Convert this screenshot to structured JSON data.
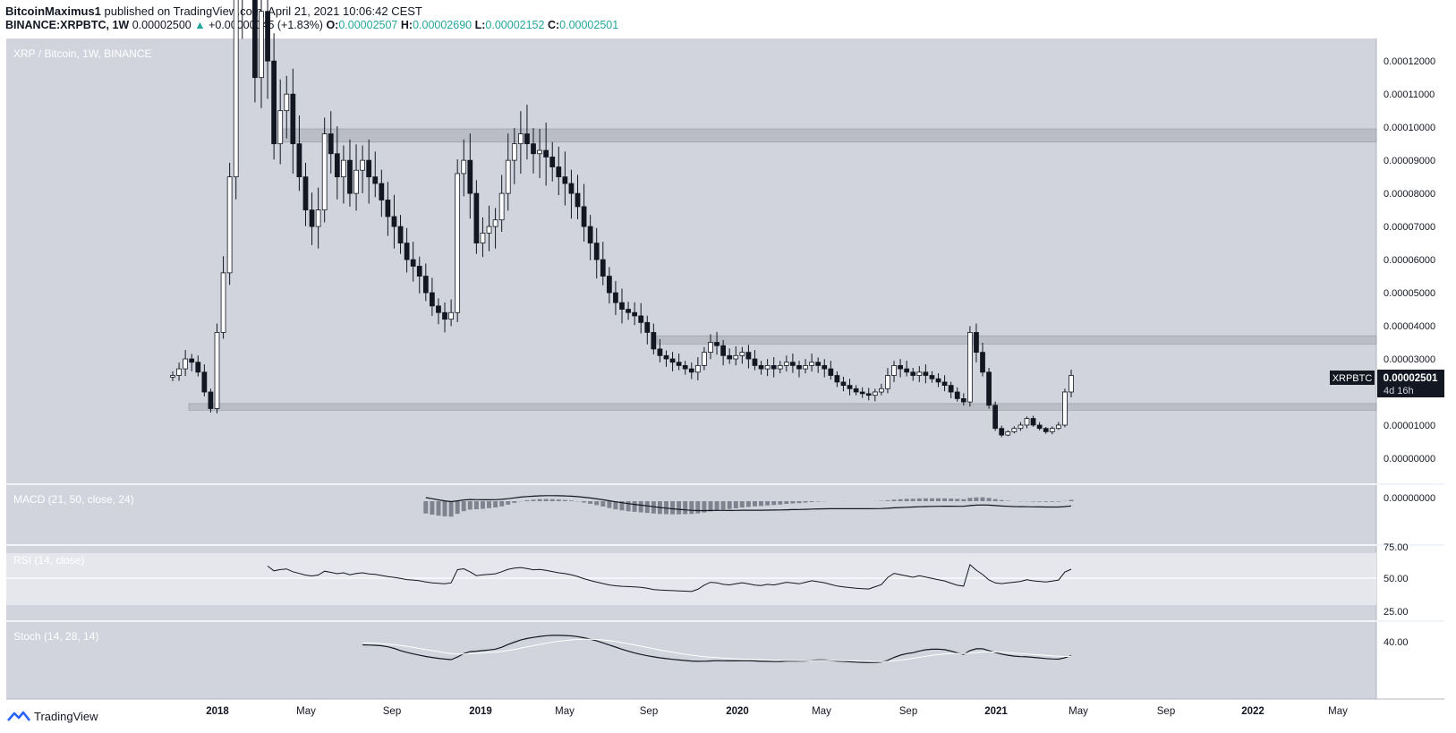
{
  "header": {
    "author": "BitcoinMaximus1",
    "published_text": "published on TradingView.com, April 21, 2021 10:06:42 CEST",
    "symbol": "BINANCE:XRPBTC, 1W",
    "last": "0.00002500",
    "change": "+0.00000045 (+1.83%)",
    "o_label": "O:",
    "o": "0.00002507",
    "h_label": "H:",
    "h": "0.00002690",
    "l_label": "L:",
    "l": "0.00002152",
    "c_label": "C:",
    "c": "0.00002501"
  },
  "footer": {
    "brand": "TradingView"
  },
  "colors": {
    "panel_bg": "#d1d4dc",
    "accent": "#26a69a",
    "zone_fill": "#b2b5be",
    "candle": "#131722"
  },
  "chart_data": {
    "type": "candlestick",
    "title": "XRP / Bitcoin, 1W, BINANCE",
    "currency_label": "BTC",
    "last_price_tag": {
      "symbol": "XRPBTC",
      "price": "0.00002501",
      "countdown": "4d 16h"
    },
    "x_ticks": [
      "2018",
      "May",
      "Sep",
      "2019",
      "May",
      "Sep",
      "2020",
      "May",
      "Sep",
      "2021",
      "May",
      "Sep",
      "2022",
      "May"
    ],
    "y_ticks": [
      "0.00000000",
      "0.00001000",
      "0.00002000",
      "0.00003000",
      "0.00004000",
      "0.00005000",
      "0.00006000",
      "0.00007000",
      "0.00008000",
      "0.00009000",
      "0.00010000",
      "0.00011000",
      "0.00012000"
    ],
    "ylim": [
      -6.5e-06,
      0.000126
    ],
    "horizontal_zones": [
      {
        "from": 9.55e-05,
        "to": 9.95e-05,
        "start": "2018-04"
      },
      {
        "from": 3.45e-05,
        "to": 3.7e-05,
        "start": "2018-09"
      },
      {
        "from": 1.45e-05,
        "to": 1.65e-05,
        "start": "2017-10"
      }
    ],
    "close_series_1e-8": [
      2500,
      2700,
      3000,
      2900,
      2600,
      2000,
      1500,
      3800,
      5600,
      8500,
      14000,
      16500,
      15500,
      11500,
      13500,
      12000,
      9500,
      10500,
      11000,
      9500,
      8500,
      7500,
      7000,
      7500,
      9800,
      9200,
      8500,
      9000,
      8000,
      8700,
      9000,
      8500,
      8300,
      7800,
      7300,
      7000,
      6500,
      6000,
      5800,
      5500,
      5000,
      4600,
      4400,
      4200,
      4400,
      8600,
      9000,
      8000,
      6500,
      6800,
      7000,
      7200,
      8000,
      9000,
      9500,
      9800,
      9500,
      9200,
      9300,
      9100,
      8800,
      8500,
      8300,
      8000,
      7600,
      7000,
      6500,
      6000,
      5500,
      5000,
      4700,
      4500,
      4400,
      4300,
      4100,
      3800,
      3300,
      3100,
      3000,
      2900,
      2800,
      2700,
      2600,
      2800,
      3200,
      3500,
      3400,
      3100,
      3000,
      3100,
      3200,
      3000,
      2800,
      2700,
      2800,
      2700,
      2800,
      2900,
      2800,
      2700,
      2800,
      2900,
      2800,
      2700,
      2500,
      2300,
      2200,
      2100,
      2000,
      1950,
      1900,
      2000,
      2100,
      2500,
      2800,
      2700,
      2600,
      2500,
      2600,
      2500,
      2400,
      2300,
      2200,
      2000,
      1800,
      1700,
      3800,
      3200,
      2600,
      1600,
      900,
      700,
      800,
      900,
      1000,
      1200,
      1000,
      900,
      800,
      900,
      1000,
      2000,
      2501
    ],
    "indicators": [
      {
        "name": "MACD (21, 50, close, 24)",
        "value_label": "0.00000000"
      },
      {
        "name": "RSI (14, close)",
        "ticks": [
          "75.00",
          "50.00",
          "25.00"
        ]
      },
      {
        "name": "Stoch (14, 28, 14)",
        "value_label": "40.00"
      }
    ]
  }
}
